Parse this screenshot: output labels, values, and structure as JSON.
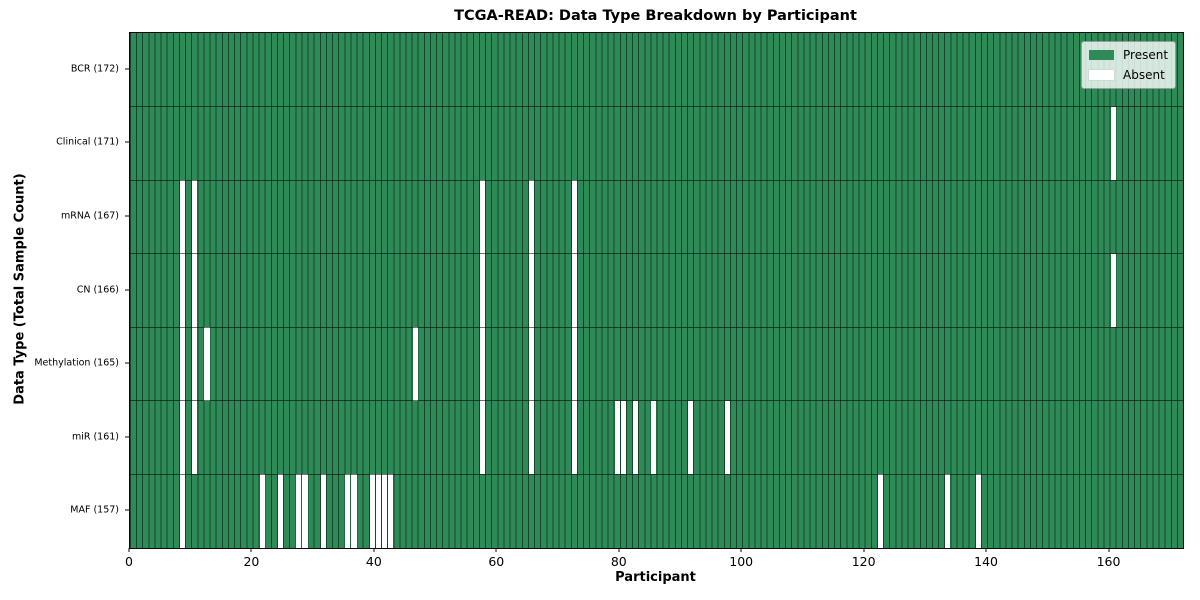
{
  "title": "TCGA-READ: Data Type Breakdown by Participant",
  "xlabel": "Participant",
  "ylabel": "Data Type (Total Sample Count)",
  "legend": {
    "present_label": "Present",
    "absent_label": "Absent"
  },
  "colors": {
    "present": "#2e8b57",
    "absent": "#ffffff"
  },
  "chart_data": {
    "type": "heatmap",
    "n_participants": 172,
    "xlim": [
      0,
      172
    ],
    "x_ticks": [
      0,
      20,
      40,
      60,
      80,
      100,
      120,
      140,
      160
    ],
    "grid": "cell-edges",
    "legend_position": "upper right",
    "rows": [
      {
        "label": "BCR (172)",
        "data_type": "BCR",
        "total": 172,
        "absent": []
      },
      {
        "label": "Clinical (171)",
        "data_type": "Clinical",
        "total": 171,
        "absent": [
          160
        ]
      },
      {
        "label": "mRNA (167)",
        "data_type": "mRNA",
        "total": 167,
        "absent": [
          8,
          10,
          57,
          65,
          72
        ]
      },
      {
        "label": "CN (166)",
        "data_type": "CN",
        "total": 166,
        "absent": [
          8,
          10,
          57,
          65,
          72,
          160
        ]
      },
      {
        "label": "Methylation (165)",
        "data_type": "Methylation",
        "total": 165,
        "absent": [
          8,
          10,
          12,
          46,
          57,
          65,
          72
        ]
      },
      {
        "label": "miR (161)",
        "data_type": "miR",
        "total": 161,
        "absent": [
          8,
          10,
          57,
          65,
          72,
          79,
          80,
          82,
          85,
          91,
          97
        ]
      },
      {
        "label": "MAF (157)",
        "data_type": "MAF",
        "total": 157,
        "absent": [
          8,
          21,
          24,
          27,
          28,
          31,
          35,
          36,
          39,
          40,
          41,
          42,
          122,
          133,
          138
        ]
      }
    ]
  }
}
